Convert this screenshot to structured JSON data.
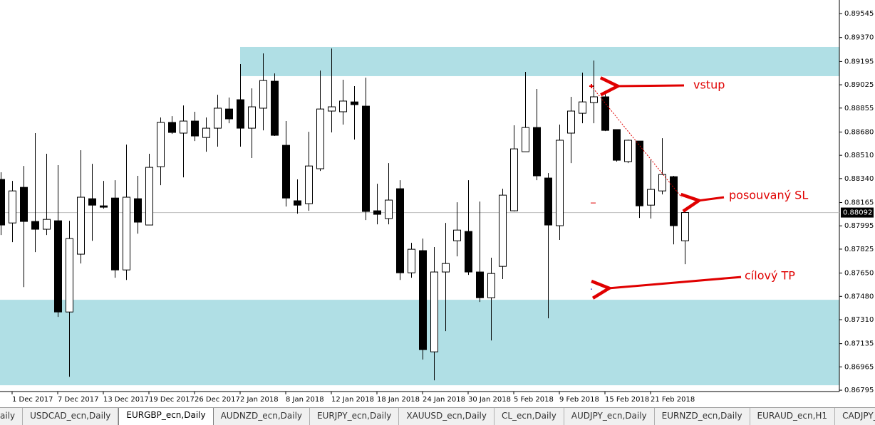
{
  "chart_data": {
    "type": "candlestick",
    "categories": [
      null,
      "1 Dec 2017",
      null,
      null,
      null,
      "7 Dec 2017",
      null,
      null,
      null,
      "13 Dec 2017",
      null,
      null,
      null,
      "19 Dec 2017",
      null,
      null,
      null,
      "26 Dec 2017",
      null,
      null,
      null,
      "2 Jan 2018",
      null,
      null,
      null,
      "8 Jan 2018",
      null,
      null,
      null,
      "12 Jan 2018",
      null,
      null,
      null,
      "18 Jan 2018",
      null,
      null,
      null,
      "24 Jan 2018",
      null,
      null,
      null,
      "30 Jan 2018",
      null,
      null,
      null,
      "5 Feb 2018",
      null,
      null,
      null,
      "9 Feb 2018",
      null,
      null,
      null,
      "15 Feb 2018",
      null,
      null,
      null,
      "21 Feb 2018",
      null,
      null,
      null
    ],
    "open": [
      0.88334,
      0.88016,
      0.88276,
      0.88027,
      0.8797,
      0.88032,
      0.87366,
      0.87788,
      0.88193,
      0.88141,
      0.88198,
      0.87673,
      0.88193,
      0.88001,
      0.88427,
      0.8875,
      0.88672,
      0.8876,
      0.8864,
      0.88708,
      0.88848,
      0.88916,
      0.88708,
      0.88854,
      0.89051,
      0.88583,
      0.88178,
      0.88157,
      0.88412,
      0.88833,
      0.88828,
      0.889,
      0.88869,
      0.88105,
      0.88048,
      0.88266,
      0.87652,
      0.87814,
      0.87075,
      0.87658,
      0.87886,
      0.87954,
      0.87658,
      0.8747,
      0.87699,
      0.88105,
      0.88536,
      0.88713,
      0.88344,
      0.87996,
      0.88672,
      0.88817,
      0.88895,
      0.88937,
      0.88698,
      0.88464,
      0.88614,
      0.88146,
      0.8825,
      0.88354,
      0.87886
    ],
    "high": [
      0.88386,
      0.88323,
      0.88432,
      0.88672,
      0.88521,
      0.88438,
      0.88032,
      0.88547,
      0.88448,
      0.88323,
      0.88328,
      0.88588,
      0.8836,
      0.88521,
      0.88786,
      0.88796,
      0.88874,
      0.88828,
      0.88786,
      0.88952,
      0.88932,
      0.89176,
      0.88999,
      0.89254,
      0.89108,
      0.8876,
      0.88334,
      0.88682,
      0.89129,
      0.8929,
      0.89062,
      0.89015,
      0.89077,
      0.88302,
      0.88453,
      0.88328,
      0.87871,
      0.87902,
      0.8784,
      0.88016,
      0.88167,
      0.88328,
      0.88172,
      0.87762,
      0.88266,
      0.88729,
      0.89119,
      0.88994,
      0.8838,
      0.88734,
      0.88937,
      0.89114,
      0.89202,
      0.89015,
      0.88698,
      0.88625,
      0.88614,
      0.88479,
      0.88635,
      0.8836,
      0.88183
    ],
    "low": [
      0.87928,
      0.87876,
      0.87548,
      0.87803,
      0.87928,
      0.8733,
      0.86893,
      0.8772,
      0.87886,
      0.8812,
      0.87616,
      0.876,
      0.87938,
      0.88001,
      0.88292,
      0.88666,
      0.88349,
      0.88614,
      0.88536,
      0.88573,
      0.88744,
      0.88573,
      0.8849,
      0.88692,
      0.88651,
      0.88136,
      0.88084,
      0.88105,
      0.88396,
      0.88677,
      0.88734,
      0.88625,
      0.88037,
      0.88006,
      0.88006,
      0.876,
      0.87616,
      0.87018,
      0.86867,
      0.87226,
      0.87772,
      0.87637,
      0.87439,
      0.87158,
      0.87606,
      0.881,
      0.88536,
      0.88328,
      0.8732,
      0.87892,
      0.88453,
      0.88744,
      0.88744,
      0.88687,
      0.88464,
      0.88453,
      0.88053,
      0.88048,
      0.88224,
      0.8786,
      0.87715
    ],
    "close": [
      0.88001,
      0.8825,
      0.88027,
      0.8797,
      0.88042,
      0.87366,
      0.87902,
      0.88204,
      0.88146,
      0.88131,
      0.87673,
      0.88204,
      0.88022,
      0.88422,
      0.8875,
      0.88677,
      0.8876,
      0.88651,
      0.88708,
      0.88854,
      0.88776,
      0.88708,
      0.88864,
      0.89056,
      0.88656,
      0.88198,
      0.88146,
      0.88432,
      0.88848,
      0.88864,
      0.88906,
      0.8888,
      0.881,
      0.88079,
      0.88183,
      0.87652,
      0.87824,
      0.87091,
      0.87658,
      0.8772,
      0.87964,
      0.87658,
      0.8747,
      0.87647,
      0.88219,
      0.88557,
      0.88713,
      0.8836,
      0.88001,
      0.8862,
      0.88833,
      0.889,
      0.88937,
      0.88692,
      0.88474,
      0.8862,
      0.88141,
      0.88261,
      0.8837,
      0.87996,
      0.88092
    ],
    "ylim": [
      0.86785,
      0.89644
    ],
    "yticks": [
      0.89545,
      {
        "value": 0.8937,
        "label": "0.89370"
      },
      0.89195,
      0.89025,
      0.88855,
      {
        "value": 0.8868,
        "label": "0.88680"
      },
      {
        "value": 0.8851,
        "label": "0.88510"
      },
      {
        "value": 0.8834,
        "label": "0.88340"
      },
      0.88165,
      0.87995,
      0.87825,
      {
        "value": 0.8765,
        "label": "0.87650"
      },
      {
        "value": 0.8748,
        "label": "0.87480"
      },
      {
        "value": 0.8731,
        "label": "0.87310"
      },
      0.87135,
      0.86965,
      0.86795
    ],
    "last_price": 0.88092,
    "zones": [
      {
        "high": 0.89301,
        "low": 0.89088
      },
      {
        "high": 0.87455,
        "low": 0.86831
      }
    ],
    "zone_color": "#b0dfe5",
    "annotations": [
      {
        "text": "vstup",
        "value": 0.89015
      },
      {
        "text": "posouvaný SL",
        "value": 0.88162
      },
      {
        "text": "cílový TP",
        "value": 0.87533
      }
    ]
  },
  "tabs": [
    "aily",
    "USDCAD_ecn,Daily",
    "EURGBP_ecn,Daily",
    "AUDNZD_ecn,Daily",
    "EURJPY_ecn,Daily",
    "XAUUSD_ecn,Daily",
    "CL_ecn,Daily",
    "AUDJPY_ecn,Daily",
    "EURNZD_ecn,Daily",
    "EURAUD_ecn,H1",
    "CADJPY_ecn,Daily"
  ],
  "active_tab": 2
}
